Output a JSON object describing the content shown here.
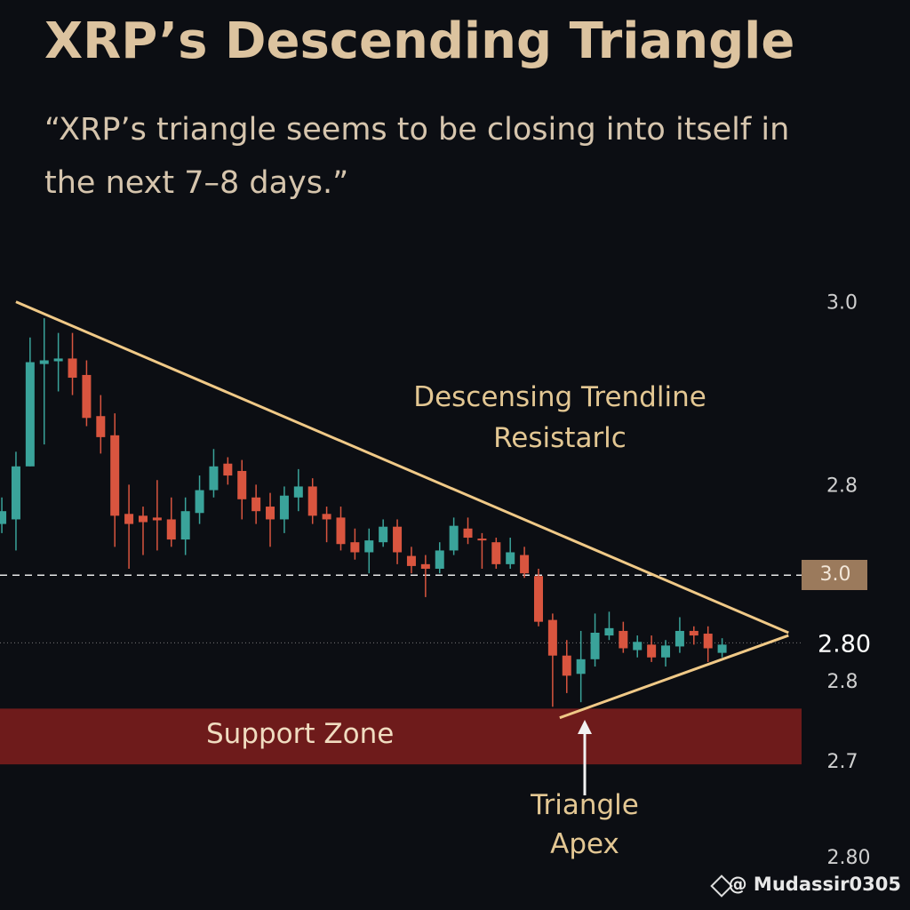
{
  "chart_data": {
    "type": "candlestick",
    "title": "XRP’s Descending Triangle",
    "subtitle": "“XRP’s triangle seems to be closing into itself in the next 7–8 days.”",
    "xlim": [
      -0.13,
      56.5
    ],
    "ylim": [
      2.36,
      3.06
    ],
    "yticks": [
      {
        "value": 3,
        "label": "3.0"
      },
      {
        "value": 2.8,
        "label": "2.8"
      }
    ],
    "extra_axis_labels": [
      "3.0",
      "2.80",
      "2.8",
      "2.7",
      "2.80"
    ],
    "up_color": "#3aa39a",
    "down_color": "#d9553f",
    "candles": {
      "open": [
        2.759,
        2.764,
        2.822,
        2.934,
        2.937,
        2.94,
        2.922,
        2.877,
        2.856,
        2.77,
        2.768,
        2.766,
        2.764,
        2.742,
        2.771,
        2.796,
        2.825,
        2.817,
        2.788,
        2.778,
        2.764,
        2.788,
        2.8,
        2.77,
        2.766,
        2.739,
        2.728,
        2.739,
        2.756,
        2.724,
        2.715,
        2.71,
        2.73,
        2.754,
        2.743,
        2.739,
        2.715,
        2.725,
        2.702,
        2.654,
        2.615,
        2.595,
        2.611,
        2.637,
        2.642,
        2.621,
        2.627,
        2.613,
        2.625,
        2.642,
        2.639,
        2.618
      ],
      "high": [
        2.788,
        2.838,
        2.963,
        2.984,
        2.968,
        2.968,
        2.938,
        2.9,
        2.88,
        2.802,
        2.778,
        2.807,
        2.788,
        2.788,
        2.812,
        2.841,
        2.832,
        2.829,
        2.802,
        2.793,
        2.8,
        2.819,
        2.809,
        2.778,
        2.778,
        2.754,
        2.754,
        2.764,
        2.764,
        2.734,
        2.725,
        2.739,
        2.766,
        2.766,
        2.749,
        2.744,
        2.744,
        2.734,
        2.71,
        2.661,
        2.632,
        2.642,
        2.661,
        2.663,
        2.652,
        2.637,
        2.637,
        2.632,
        2.657,
        2.647,
        2.647,
        2.634
      ],
      "low": [
        2.749,
        2.73,
        2.822,
        2.846,
        2.904,
        2.9,
        2.866,
        2.836,
        2.734,
        2.71,
        2.725,
        2.73,
        2.734,
        2.725,
        2.759,
        2.788,
        2.802,
        2.764,
        2.759,
        2.734,
        2.749,
        2.773,
        2.759,
        2.739,
        2.73,
        2.72,
        2.705,
        2.734,
        2.715,
        2.705,
        2.679,
        2.705,
        2.725,
        2.737,
        2.71,
        2.71,
        2.71,
        2.7,
        2.647,
        2.559,
        2.574,
        2.564,
        2.603,
        2.632,
        2.618,
        2.613,
        2.608,
        2.603,
        2.618,
        2.627,
        2.608,
        2.613
      ],
      "close": [
        2.773,
        2.822,
        2.936,
        2.938,
        2.94,
        2.919,
        2.875,
        2.854,
        2.768,
        2.759,
        2.761,
        2.763,
        2.742,
        2.773,
        2.796,
        2.822,
        2.812,
        2.786,
        2.773,
        2.764,
        2.79,
        2.8,
        2.768,
        2.764,
        2.737,
        2.728,
        2.741,
        2.756,
        2.728,
        2.713,
        2.71,
        2.73,
        2.757,
        2.744,
        2.741,
        2.715,
        2.728,
        2.705,
        2.652,
        2.615,
        2.593,
        2.611,
        2.64,
        2.645,
        2.623,
        2.63,
        2.613,
        2.626,
        2.642,
        2.637,
        2.623,
        2.627
      ]
    },
    "trendline_color": "#f0c987",
    "trendlines": [
      {
        "x": [
          1,
          55.7
        ],
        "y": [
          3.002,
          2.64
        ]
      },
      {
        "x": [
          39.5,
          55.7
        ],
        "y": [
          2.547,
          2.637
        ]
      }
    ],
    "levels": [
      {
        "value": 2.703,
        "style": "dashed"
      },
      {
        "value": 2.629,
        "style": "dotted"
      }
    ],
    "support_zone": {
      "label": "Support Zone",
      "range": [
        2.496,
        2.557
      ],
      "color": "#6e1b1b"
    },
    "annotations": [
      "Descensing Trendline Resistarlc",
      "Triangle Apex"
    ],
    "watermark": "@ Mudassir0305"
  }
}
